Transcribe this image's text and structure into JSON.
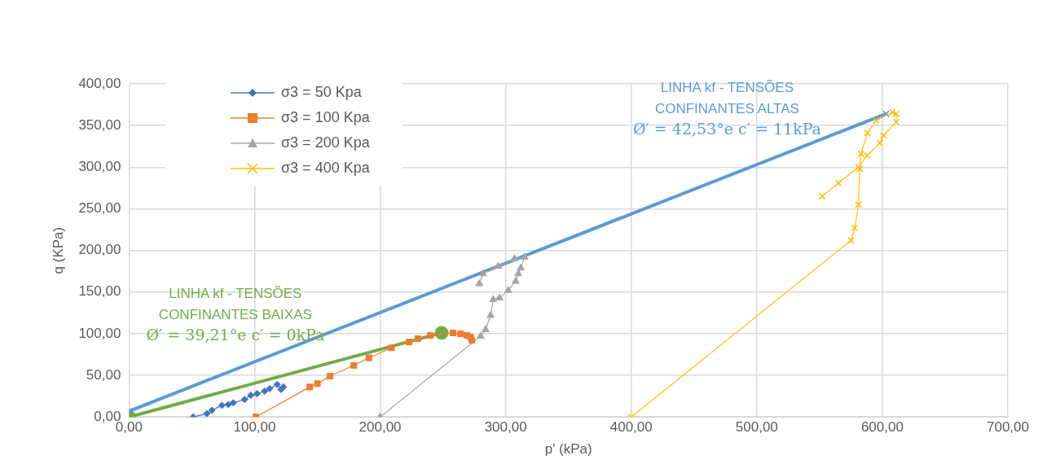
{
  "chart_data": {
    "type": "line",
    "xlabel": "p' (kPa)",
    "ylabel": "q (KPa)",
    "xlim": [
      0,
      700
    ],
    "ylim": [
      0,
      400
    ],
    "xticks": [
      {
        "value": 0,
        "label": "0,00"
      },
      {
        "value": 100,
        "label": "100,00"
      },
      {
        "value": 200,
        "label": "200,00"
      },
      {
        "value": 300,
        "label": "300,00"
      },
      {
        "value": 400,
        "label": "400,00"
      },
      {
        "value": 500,
        "label": "500,00"
      },
      {
        "value": 600,
        "label": "600,00"
      },
      {
        "value": 700,
        "label": "700,00"
      }
    ],
    "yticks": [
      {
        "value": 0,
        "label": "0,00"
      },
      {
        "value": 50,
        "label": "50,00"
      },
      {
        "value": 100,
        "label": "100,00"
      },
      {
        "value": 150,
        "label": "150,00"
      },
      {
        "value": 200,
        "label": "200,00"
      },
      {
        "value": 250,
        "label": "250,00"
      },
      {
        "value": 300,
        "label": "300,00"
      },
      {
        "value": 350,
        "label": "350,00"
      },
      {
        "value": 400,
        "label": "400,00"
      }
    ],
    "grid": true,
    "legend": "top left",
    "series": [
      {
        "name": "σ3 = 50 Kpa",
        "color": "#4472c4",
        "marker": "diamond",
        "x": [
          51,
          62,
          66,
          74,
          79,
          83,
          92,
          97,
          102,
          108,
          112,
          118,
          121,
          123
        ],
        "values": [
          0,
          4,
          8,
          14,
          15,
          17,
          21,
          26,
          28,
          31,
          34,
          39,
          33,
          36
        ]
      },
      {
        "name": "σ3 = 100 Kpa",
        "color": "#ed7d31",
        "marker": "square",
        "x": [
          101,
          144,
          150,
          160,
          179,
          191,
          209,
          223,
          230,
          240,
          258,
          264,
          269,
          272,
          273
        ],
        "values": [
          0,
          36,
          40,
          49,
          62,
          71,
          83,
          90,
          94,
          98,
          101,
          100,
          98,
          96,
          92
        ]
      },
      {
        "name": "σ3 = 200 Kpa",
        "color": "#a5a5a5",
        "marker": "triangle",
        "x": [
          200,
          280,
          284,
          288,
          290,
          295,
          302,
          308,
          310,
          312,
          315,
          307,
          294,
          282,
          279
        ],
        "values": [
          0,
          97,
          105,
          122,
          141,
          143,
          152,
          163,
          172,
          179,
          192,
          190,
          181,
          172,
          160
        ]
      },
      {
        "name": "σ3 = 400 Kpa",
        "color": "#ffc000",
        "marker": "cross",
        "x": [
          400,
          575,
          578,
          581,
          582,
          583,
          588,
          595,
          608,
          611,
          611,
          601,
          598,
          588,
          581,
          565,
          552
        ],
        "values": [
          0,
          212,
          227,
          255,
          298,
          316,
          341,
          356,
          366,
          364,
          354,
          338,
          329,
          314,
          300,
          281,
          265
        ]
      },
      {
        "color": "#5b9bd5",
        "marker": "cross",
        "x": [
          0,
          603
        ],
        "values": [
          7,
          364
        ]
      },
      {
        "color": "#70ad47",
        "marker": "circle",
        "x": [
          0,
          249
        ],
        "values": [
          0,
          101
        ]
      }
    ],
    "annotations": [
      "LINHA kf - TENSÕES\nCONFINANTES ALTAS\nØ′ = 42,53°e c′ = 11kPa",
      "LINHA kf - TENSÕES\nCONFINANTES BAIXAS\nØ′ = 39,21°e c′ = 0kPa"
    ]
  }
}
